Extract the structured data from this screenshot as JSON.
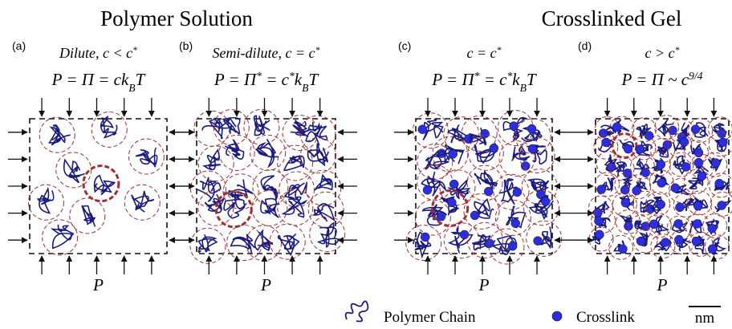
{
  "titles": [
    "Polymer Solution",
    "Crosslinked Gel"
  ],
  "panels": [
    {
      "label": "(a)",
      "condition": [
        "Dilute,  c < c",
        "*"
      ],
      "pressure": [
        "P = Π = ck",
        "B",
        "T"
      ],
      "load": "P"
    },
    {
      "label": "(b)",
      "condition": [
        "Semi-dilute,  c = c",
        "*"
      ],
      "pressure": [
        "P = Π",
        "*",
        " = c",
        "*",
        "k",
        "B",
        "T"
      ],
      "load": "P"
    },
    {
      "label": "(c)",
      "condition": [
        "c = c",
        "*"
      ],
      "pressure": [
        "P = Π",
        "*",
        " = c",
        "*",
        "k",
        "B",
        "T"
      ],
      "load": "P"
    },
    {
      "label": "(d)",
      "condition": [
        "c > c",
        "*"
      ],
      "pressure": [
        "P = Π ~ c",
        "9/4"
      ],
      "load": "P"
    }
  ],
  "legend": {
    "chain": "Polymer Chain",
    "crosslink": "Crosslink",
    "scale": "nm"
  }
}
